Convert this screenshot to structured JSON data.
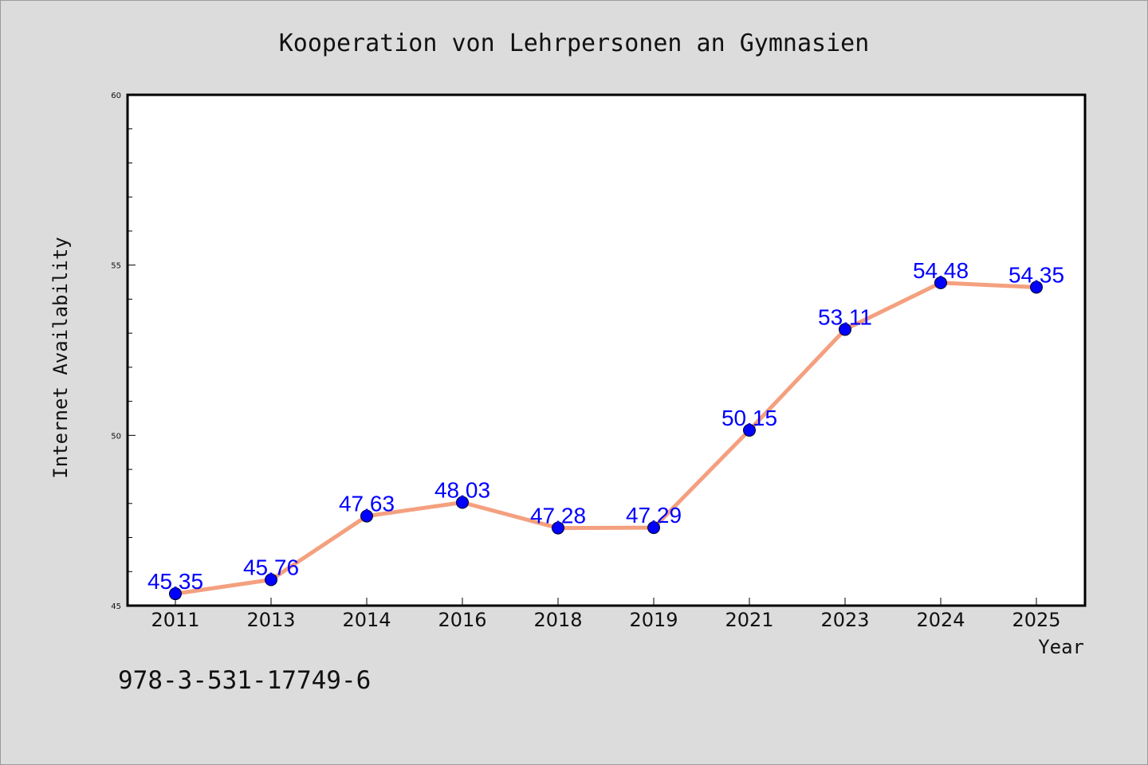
{
  "chart_data": {
    "type": "line",
    "title": "Kooperation von Lehrpersonen an Gymnasien",
    "xlabel": "Year",
    "ylabel": "Internet Availability",
    "categories": [
      "2011",
      "2013",
      "2014",
      "2016",
      "2018",
      "2019",
      "2021",
      "2023",
      "2024",
      "2025"
    ],
    "series": [
      {
        "values": [
          45.35,
          45.76,
          47.63,
          48.03,
          47.28,
          47.29,
          50.15,
          53.11,
          54.48,
          54.35
        ],
        "labels": [
          "45.35",
          "45.76",
          "47.63",
          "48.03",
          "47.28",
          "47.29",
          "50.15",
          "53.11",
          "54.48",
          "54.35"
        ],
        "line_color": "#f4a07f",
        "marker_color": "#0000ff"
      }
    ],
    "ylim": [
      45,
      60
    ],
    "yticks": [
      "45",
      "50",
      "55",
      "60"
    ],
    "grid": false,
    "legend": "none"
  },
  "footer": {
    "identifier": "978-3-531-17749-6"
  },
  "colors": {
    "background": "#dcdcdc",
    "plot_background": "#ffffff",
    "label_color": "#0000ff"
  }
}
